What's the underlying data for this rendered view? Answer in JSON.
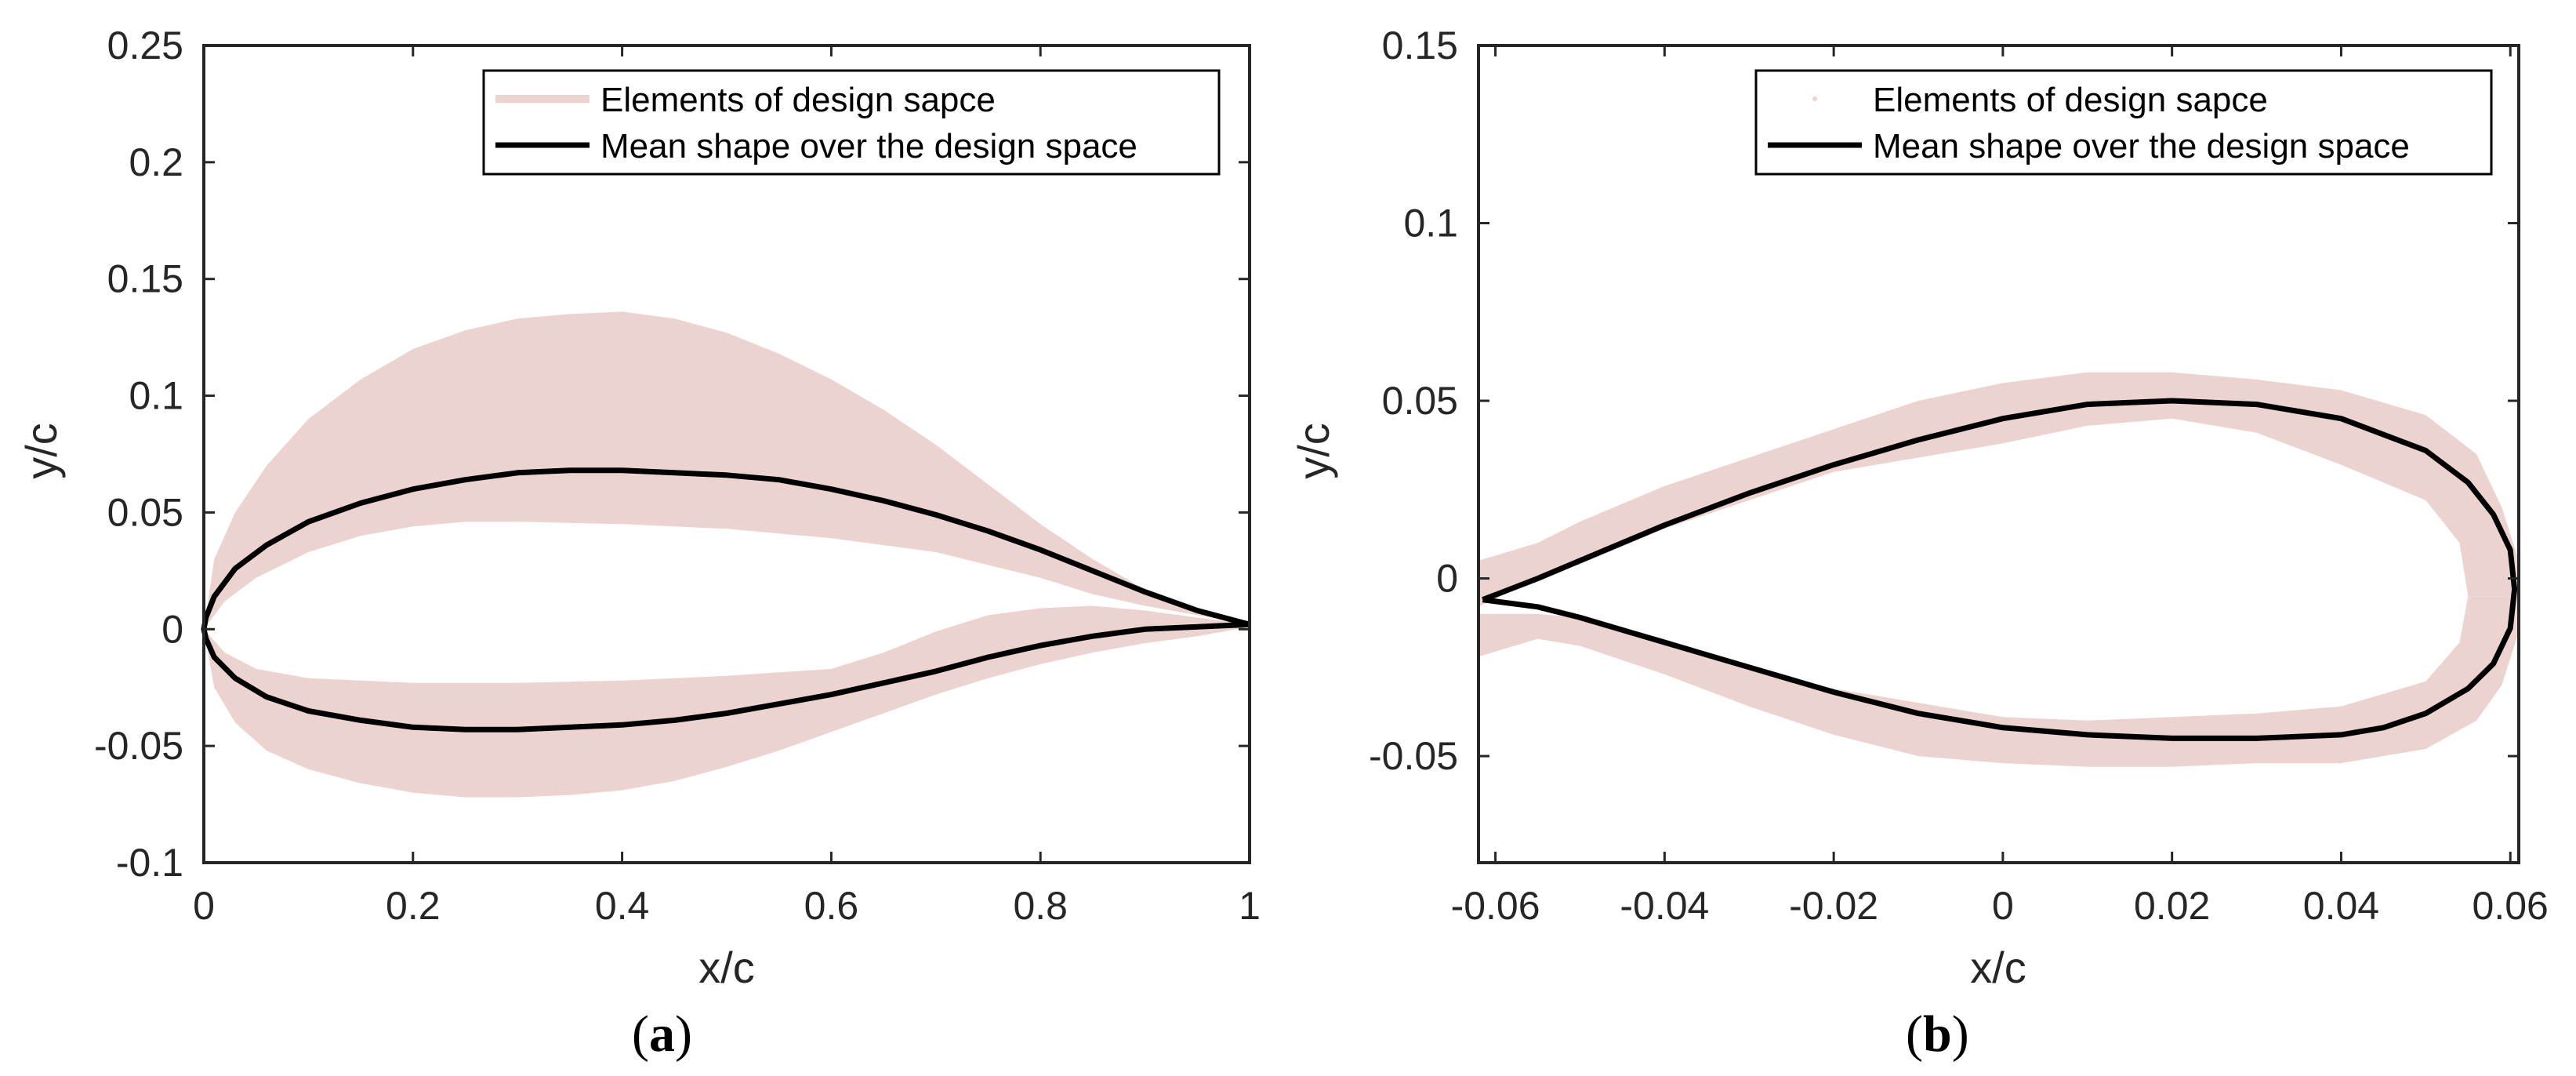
{
  "colors": {
    "band": "#ecd3d0",
    "mean": "#000000",
    "axis": "#262626"
  },
  "chart_data": [
    {
      "type": "line",
      "panel": "(a)",
      "panel_open": "(",
      "panel_letter": "a",
      "panel_close": ")",
      "xlabel": "x/c",
      "ylabel": "y/c",
      "xlim": [
        0,
        1
      ],
      "ylim": [
        -0.1,
        0.25
      ],
      "xticks": [
        0,
        0.2,
        0.4,
        0.6,
        0.8,
        1
      ],
      "xtick_labels": [
        "0",
        "0.2",
        "0.4",
        "0.6",
        "0.8",
        "1"
      ],
      "yticks": [
        -0.1,
        -0.05,
        0,
        0.05,
        0.1,
        0.15,
        0.2,
        0.25
      ],
      "ytick_labels": [
        "-0.1",
        "-0.05",
        "0",
        "0.05",
        "0.1",
        "0.15",
        "0.2",
        "0.25"
      ],
      "legend_position": "top-right",
      "legend": [
        "Elements of design sapce",
        "Mean shape over the design space"
      ],
      "series": [
        {
          "name": "Elements of design sapce",
          "kind": "band",
          "upper_outer": [
            [
              0,
              0
            ],
            [
              0.01,
              0.03
            ],
            [
              0.03,
              0.05
            ],
            [
              0.06,
              0.07
            ],
            [
              0.1,
              0.09
            ],
            [
              0.15,
              0.107
            ],
            [
              0.2,
              0.12
            ],
            [
              0.25,
              0.128
            ],
            [
              0.3,
              0.133
            ],
            [
              0.35,
              0.135
            ],
            [
              0.4,
              0.136
            ],
            [
              0.45,
              0.133
            ],
            [
              0.5,
              0.127
            ],
            [
              0.55,
              0.118
            ],
            [
              0.6,
              0.107
            ],
            [
              0.65,
              0.094
            ],
            [
              0.7,
              0.079
            ],
            [
              0.75,
              0.062
            ],
            [
              0.8,
              0.045
            ],
            [
              0.85,
              0.03
            ],
            [
              0.9,
              0.017
            ],
            [
              0.95,
              0.008
            ],
            [
              1,
              0.002
            ]
          ],
          "upper_inner": [
            [
              0,
              0
            ],
            [
              0.02,
              0.012
            ],
            [
              0.05,
              0.022
            ],
            [
              0.1,
              0.033
            ],
            [
              0.15,
              0.04
            ],
            [
              0.2,
              0.044
            ],
            [
              0.25,
              0.046
            ],
            [
              0.3,
              0.046
            ],
            [
              0.4,
              0.045
            ],
            [
              0.5,
              0.043
            ],
            [
              0.6,
              0.039
            ],
            [
              0.7,
              0.033
            ],
            [
              0.8,
              0.022
            ],
            [
              0.85,
              0.015
            ],
            [
              0.9,
              0.01
            ],
            [
              0.95,
              0.006
            ],
            [
              1,
              0.002
            ]
          ],
          "lower_inner": [
            [
              0,
              0
            ],
            [
              0.02,
              -0.01
            ],
            [
              0.05,
              -0.017
            ],
            [
              0.1,
              -0.021
            ],
            [
              0.2,
              -0.023
            ],
            [
              0.3,
              -0.023
            ],
            [
              0.4,
              -0.022
            ],
            [
              0.5,
              -0.02
            ],
            [
              0.6,
              -0.017
            ],
            [
              0.65,
              -0.01
            ],
            [
              0.7,
              -0.001
            ],
            [
              0.75,
              0.006
            ],
            [
              0.8,
              0.009
            ],
            [
              0.85,
              0.01
            ],
            [
              0.9,
              0.008
            ],
            [
              0.95,
              0.005
            ],
            [
              1,
              0.002
            ]
          ],
          "lower_outer": [
            [
              0,
              0
            ],
            [
              0.01,
              -0.025
            ],
            [
              0.03,
              -0.04
            ],
            [
              0.06,
              -0.052
            ],
            [
              0.1,
              -0.06
            ],
            [
              0.15,
              -0.066
            ],
            [
              0.2,
              -0.07
            ],
            [
              0.25,
              -0.072
            ],
            [
              0.3,
              -0.072
            ],
            [
              0.35,
              -0.071
            ],
            [
              0.4,
              -0.069
            ],
            [
              0.45,
              -0.065
            ],
            [
              0.5,
              -0.059
            ],
            [
              0.55,
              -0.052
            ],
            [
              0.6,
              -0.044
            ],
            [
              0.65,
              -0.036
            ],
            [
              0.7,
              -0.028
            ],
            [
              0.75,
              -0.021
            ],
            [
              0.8,
              -0.015
            ],
            [
              0.85,
              -0.01
            ],
            [
              0.9,
              -0.006
            ],
            [
              0.95,
              -0.003
            ],
            [
              1,
              0.001
            ]
          ]
        },
        {
          "name": "Mean shape over the design space",
          "kind": "line",
          "points": [
            [
              1,
              0.002
            ],
            [
              0.95,
              0.008
            ],
            [
              0.9,
              0.016
            ],
            [
              0.85,
              0.025
            ],
            [
              0.8,
              0.034
            ],
            [
              0.75,
              0.042
            ],
            [
              0.7,
              0.049
            ],
            [
              0.65,
              0.055
            ],
            [
              0.6,
              0.06
            ],
            [
              0.55,
              0.064
            ],
            [
              0.5,
              0.066
            ],
            [
              0.45,
              0.067
            ],
            [
              0.4,
              0.068
            ],
            [
              0.35,
              0.068
            ],
            [
              0.3,
              0.067
            ],
            [
              0.25,
              0.064
            ],
            [
              0.2,
              0.06
            ],
            [
              0.15,
              0.054
            ],
            [
              0.1,
              0.046
            ],
            [
              0.06,
              0.036
            ],
            [
              0.03,
              0.026
            ],
            [
              0.01,
              0.014
            ],
            [
              0.002,
              0.005
            ],
            [
              0,
              0
            ],
            [
              0.002,
              -0.004
            ],
            [
              0.01,
              -0.012
            ],
            [
              0.03,
              -0.021
            ],
            [
              0.06,
              -0.029
            ],
            [
              0.1,
              -0.035
            ],
            [
              0.15,
              -0.039
            ],
            [
              0.2,
              -0.042
            ],
            [
              0.25,
              -0.043
            ],
            [
              0.3,
              -0.043
            ],
            [
              0.35,
              -0.042
            ],
            [
              0.4,
              -0.041
            ],
            [
              0.45,
              -0.039
            ],
            [
              0.5,
              -0.036
            ],
            [
              0.55,
              -0.032
            ],
            [
              0.6,
              -0.028
            ],
            [
              0.65,
              -0.023
            ],
            [
              0.7,
              -0.018
            ],
            [
              0.75,
              -0.012
            ],
            [
              0.8,
              -0.007
            ],
            [
              0.85,
              -0.003
            ],
            [
              0.9,
              0.0
            ],
            [
              0.95,
              0.001
            ],
            [
              1,
              0.002
            ]
          ]
        }
      ]
    },
    {
      "type": "line",
      "panel": "(b)",
      "panel_open": "(",
      "panel_letter": "b",
      "panel_close": ")",
      "xlabel": "x/c",
      "ylabel": "y/c",
      "xlim": [
        -0.062,
        0.061
      ],
      "ylim": [
        -0.08,
        0.15
      ],
      "xticks": [
        -0.06,
        -0.04,
        -0.02,
        0,
        0.02,
        0.04,
        0.06
      ],
      "xtick_labels": [
        "-0.06",
        "-0.04",
        "-0.02",
        "0",
        "0.02",
        "0.04",
        "0.06"
      ],
      "yticks": [
        -0.05,
        0,
        0.05,
        0.1,
        0.15
      ],
      "ytick_labels": [
        "-0.05",
        "0",
        "0.05",
        "0.1",
        "0.15"
      ],
      "legend_position": "top-right",
      "legend": [
        "Elements of design sapce",
        "Mean shape over the design space"
      ],
      "series": [
        {
          "name": "Elements of design sapce",
          "kind": "band",
          "upper_outer": [
            [
              -0.062,
              0.005
            ],
            [
              -0.055,
              0.01
            ],
            [
              -0.05,
              0.016
            ],
            [
              -0.04,
              0.026
            ],
            [
              -0.03,
              0.034
            ],
            [
              -0.02,
              0.042
            ],
            [
              -0.01,
              0.05
            ],
            [
              0,
              0.055
            ],
            [
              0.01,
              0.058
            ],
            [
              0.02,
              0.058
            ],
            [
              0.03,
              0.056
            ],
            [
              0.04,
              0.053
            ],
            [
              0.05,
              0.046
            ],
            [
              0.056,
              0.035
            ],
            [
              0.059,
              0.02
            ],
            [
              0.061,
              0.005
            ],
            [
              0.061,
              -0.005
            ]
          ],
          "upper_inner": [
            [
              -0.062,
              -0.008
            ],
            [
              -0.055,
              0.0
            ],
            [
              -0.05,
              0.004
            ],
            [
              -0.04,
              0.014
            ],
            [
              -0.03,
              0.022
            ],
            [
              -0.02,
              0.03
            ],
            [
              -0.01,
              0.034
            ],
            [
              0,
              0.038
            ],
            [
              0.01,
              0.043
            ],
            [
              0.02,
              0.045
            ],
            [
              0.03,
              0.041
            ],
            [
              0.04,
              0.032
            ],
            [
              0.05,
              0.022
            ],
            [
              0.054,
              0.01
            ],
            [
              0.055,
              -0.005
            ]
          ],
          "lower_inner": [
            [
              -0.062,
              -0.01
            ],
            [
              -0.055,
              -0.01
            ],
            [
              -0.05,
              -0.011
            ],
            [
              -0.04,
              -0.017
            ],
            [
              -0.03,
              -0.025
            ],
            [
              -0.02,
              -0.031
            ],
            [
              -0.01,
              -0.035
            ],
            [
              0,
              -0.039
            ],
            [
              0.01,
              -0.04
            ],
            [
              0.02,
              -0.039
            ],
            [
              0.03,
              -0.038
            ],
            [
              0.04,
              -0.036
            ],
            [
              0.05,
              -0.029
            ],
            [
              0.054,
              -0.018
            ],
            [
              0.055,
              -0.005
            ]
          ],
          "lower_outer": [
            [
              -0.062,
              -0.022
            ],
            [
              -0.055,
              -0.017
            ],
            [
              -0.05,
              -0.019
            ],
            [
              -0.04,
              -0.027
            ],
            [
              -0.03,
              -0.036
            ],
            [
              -0.02,
              -0.044
            ],
            [
              -0.01,
              -0.05
            ],
            [
              0,
              -0.052
            ],
            [
              0.01,
              -0.053
            ],
            [
              0.02,
              -0.053
            ],
            [
              0.03,
              -0.052
            ],
            [
              0.04,
              -0.052
            ],
            [
              0.05,
              -0.048
            ],
            [
              0.056,
              -0.04
            ],
            [
              0.059,
              -0.03
            ],
            [
              0.061,
              -0.015
            ],
            [
              0.061,
              -0.005
            ]
          ]
        },
        {
          "name": "Mean shape over the design space",
          "kind": "line",
          "points": [
            [
              -0.0615,
              -0.006
            ],
            [
              -0.055,
              0.0
            ],
            [
              -0.05,
              0.005
            ],
            [
              -0.04,
              0.015
            ],
            [
              -0.03,
              0.024
            ],
            [
              -0.02,
              0.032
            ],
            [
              -0.01,
              0.039
            ],
            [
              0,
              0.045
            ],
            [
              0.01,
              0.049
            ],
            [
              0.02,
              0.05
            ],
            [
              0.03,
              0.049
            ],
            [
              0.04,
              0.045
            ],
            [
              0.05,
              0.036
            ],
            [
              0.055,
              0.027
            ],
            [
              0.058,
              0.018
            ],
            [
              0.06,
              0.008
            ],
            [
              0.0605,
              -0.003
            ],
            [
              0.06,
              -0.014
            ],
            [
              0.058,
              -0.024
            ],
            [
              0.055,
              -0.031
            ],
            [
              0.05,
              -0.038
            ],
            [
              0.045,
              -0.042
            ],
            [
              0.04,
              -0.044
            ],
            [
              0.03,
              -0.045
            ],
            [
              0.02,
              -0.045
            ],
            [
              0.01,
              -0.044
            ],
            [
              0,
              -0.042
            ],
            [
              -0.01,
              -0.038
            ],
            [
              -0.02,
              -0.032
            ],
            [
              -0.03,
              -0.025
            ],
            [
              -0.04,
              -0.018
            ],
            [
              -0.05,
              -0.011
            ],
            [
              -0.055,
              -0.008
            ],
            [
              -0.0615,
              -0.006
            ]
          ]
        }
      ]
    }
  ]
}
